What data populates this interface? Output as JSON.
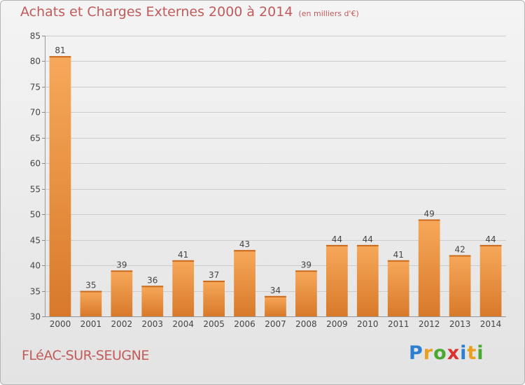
{
  "header": {
    "title": "Achats et Charges Externes 2000 à 2014",
    "unit": "(en milliers d'€)"
  },
  "commune": "FLéAC-SUR-SEUGNE",
  "logo": {
    "text": "Proxiti",
    "letters": [
      {
        "ch": "P",
        "color": "#2a7fd0"
      },
      {
        "ch": "r",
        "color": "#e8a020"
      },
      {
        "ch": "o",
        "color": "#49a830"
      },
      {
        "ch": "x",
        "color": "#d8332f"
      },
      {
        "ch": "i",
        "color": "#2a7fd0"
      },
      {
        "ch": "t",
        "color": "#e8a020"
      },
      {
        "ch": "i",
        "color": "#49a830"
      }
    ]
  },
  "colors": {
    "title": "#c25a5a",
    "bar_light": "#f7a85a",
    "bar_dark": "#d8792a",
    "grid": "#cccccc",
    "axis_text": "#444444"
  },
  "chart_data": {
    "type": "bar",
    "title": "Achats et Charges Externes 2000 à 2014",
    "subtitle": "(en milliers d'€)",
    "categories": [
      "2000",
      "2001",
      "2002",
      "2003",
      "2004",
      "2005",
      "2006",
      "2007",
      "2008",
      "2009",
      "2010",
      "2011",
      "2012",
      "2013",
      "2014"
    ],
    "values": [
      81,
      35,
      39,
      36,
      41,
      37,
      43,
      34,
      39,
      44,
      44,
      41,
      49,
      42,
      44
    ],
    "ylim": [
      30,
      85
    ],
    "yticks": [
      30,
      35,
      40,
      45,
      50,
      55,
      60,
      65,
      70,
      75,
      80,
      85
    ],
    "grid": true,
    "xlabel": "",
    "ylabel": ""
  }
}
